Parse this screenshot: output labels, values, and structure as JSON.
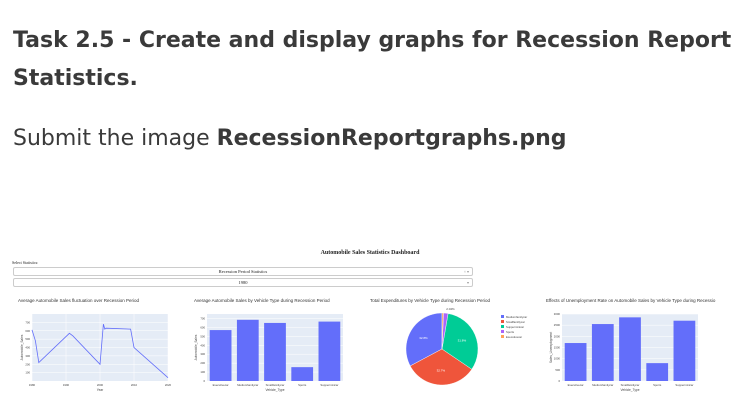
{
  "task": {
    "heading": "Task 2.5 - Create and display graphs for Recession Report Statistics.",
    "submit_prefix": "Submit the image ",
    "submit_filename": "RecessionReportgraphs.png"
  },
  "dashboard": {
    "title": "Automobile Sales Statistics Dashboard",
    "select_label": "Select Statistics:",
    "statistics_dropdown": {
      "value": "Recession Period Statistics",
      "clear": "×",
      "arrow": "▾"
    },
    "year_dropdown": {
      "value": "1980",
      "arrow": "▾"
    }
  },
  "chart_data": [
    {
      "type": "line",
      "title": "Average Automobile Sales fluctuation over Recession Period",
      "xlabel": "Year",
      "ylabel": "Automobile_Sales",
      "xlim": [
        1980,
        2020
      ],
      "ylim": [
        0,
        800
      ],
      "xticks": [
        "1980",
        "1990",
        "2000",
        "2010",
        "2020"
      ],
      "yticks": [
        "100",
        "200",
        "300",
        "400",
        "500",
        "600",
        "700"
      ],
      "x": [
        1980,
        1981,
        1982,
        1991,
        1992,
        2000,
        2001,
        2001.4,
        2001.8,
        2009,
        2010,
        2020
      ],
      "y": [
        610,
        480,
        220,
        570,
        540,
        200,
        680,
        620,
        630,
        620,
        400,
        40
      ],
      "color": "#636efa",
      "background": "#e5ecf6"
    },
    {
      "type": "bar",
      "title": "Average Automobile Sales by Vehicle Type during Recession Period",
      "xlabel": "Vehicle_Type",
      "ylabel": "Automobile_Sales",
      "categories": [
        "Executivecar",
        "Mediumfamilycar",
        "Smallfamiliycar",
        "Sports",
        "Supperminicar"
      ],
      "values": [
        570,
        685,
        650,
        155,
        665
      ],
      "ylim": [
        0,
        750
      ],
      "yticks": [
        "0",
        "100",
        "200",
        "300",
        "400",
        "500",
        "600",
        "700"
      ],
      "color": "#636efa",
      "background": "#e5ecf6"
    },
    {
      "type": "pie",
      "title": "Total Expenditures by Vehicle Type during Recession Period",
      "labels": [
        "Mediumfamilycar",
        "Smallfamiliycar",
        "Supperminicar",
        "Sports",
        "Executivecar"
      ],
      "values": [
        32.8,
        32.7,
        31.8,
        2.04,
        0.66
      ],
      "slice_labels": [
        "32.8%",
        "32.7%",
        "31.8%",
        "2.04%",
        ""
      ],
      "colors": [
        "#636efa",
        "#ef553b",
        "#00cc96",
        "#ab63fa",
        "#ffa15a"
      ]
    },
    {
      "type": "bar",
      "title": "Effects of Unemployment Rate on Automobile Sales by Vehicle Type during Recessio",
      "xlabel": "Vehicle_Type",
      "ylabel": "Sales_Unemployment",
      "categories": [
        "Executivecar",
        "Mediumfamilycar",
        "Smallfamiliycar",
        "Sports",
        "Supperminicar"
      ],
      "values": [
        1700,
        2550,
        2850,
        800,
        2700
      ],
      "ylim": [
        0,
        3000
      ],
      "yticks": [
        "0",
        "500",
        "1000",
        "1500",
        "2000",
        "2500",
        "3000"
      ],
      "color": "#636efa",
      "background": "#e5ecf6"
    }
  ]
}
